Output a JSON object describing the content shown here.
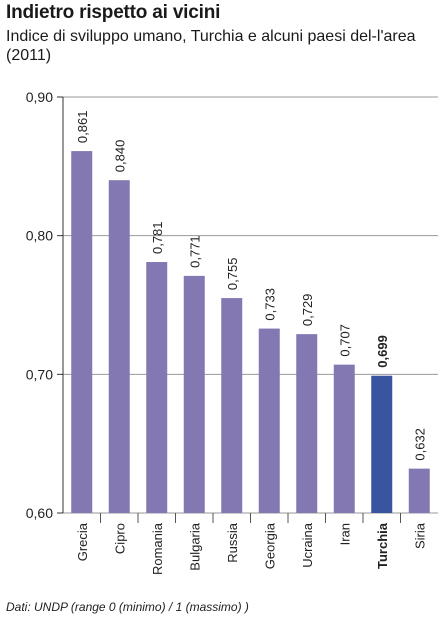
{
  "title": "Indietro rispetto ai vicini",
  "subtitle": "Indice di sviluppo umano, Turchia e alcuni paesi del-l'area (2011)",
  "source": "Dati: UNDP (range 0 (minimo) / 1 (massimo) )",
  "colors": {
    "bar": "#8478b2",
    "highlight": "#3a55a0",
    "grid": "#9a9a9a"
  },
  "chart_data": {
    "type": "bar",
    "categories": [
      "Grecia",
      "Cipro",
      "Romania",
      "Bulgaria",
      "Russia",
      "Georgia",
      "Ucraina",
      "Iran",
      "Turchia",
      "Siria"
    ],
    "values": [
      0.861,
      0.84,
      0.781,
      0.771,
      0.755,
      0.733,
      0.729,
      0.707,
      0.699,
      0.632
    ],
    "value_labels": [
      "0,861",
      "0,840",
      "0,781",
      "0,771",
      "0,755",
      "0,733",
      "0,729",
      "0,707",
      "0,699",
      "0,632"
    ],
    "highlight": "Turchia",
    "ylim": [
      0.6,
      0.9
    ],
    "yticks": [
      0.6,
      0.7,
      0.8,
      0.9
    ],
    "ytick_labels": [
      "0,60",
      "0,70",
      "0,80",
      "0,90"
    ],
    "grid": true
  }
}
